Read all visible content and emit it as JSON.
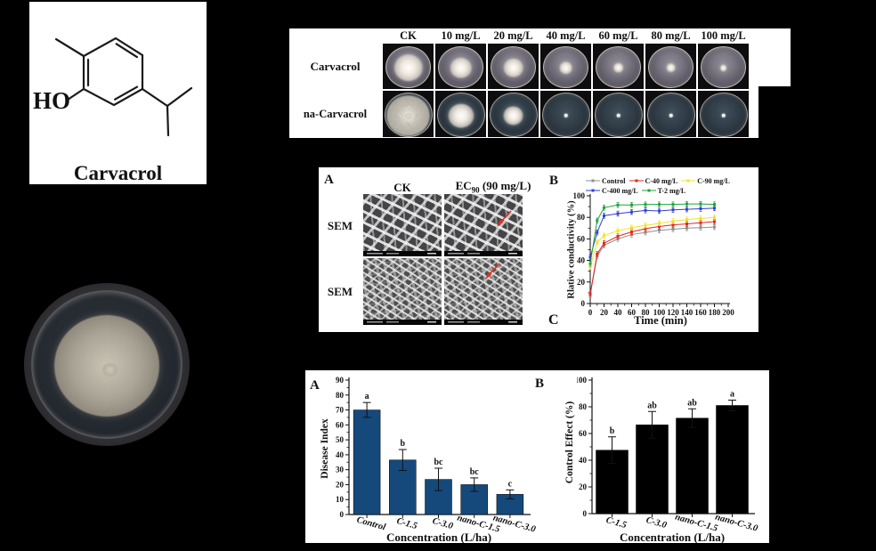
{
  "background_color": "#000000",
  "structure_panel": {
    "compound_label": "Carvacrol",
    "hydroxyl_label": "HO"
  },
  "plate_panel": {
    "col_headers": [
      "CK",
      "10 mg/L",
      "20 mg/L",
      "40 mg/L",
      "60 mg/L",
      "80 mg/L",
      "100 mg/L"
    ],
    "rows": [
      {
        "label": "Carvacrol",
        "colony_scales": [
          0.66,
          0.5,
          0.46,
          0.3,
          0.24,
          0.22,
          0.16
        ]
      },
      {
        "label": "na-Carvacrol",
        "colony_scales": [
          0.94,
          0.56,
          0.44,
          0.1,
          0.09,
          0.09,
          0.09
        ]
      }
    ]
  },
  "sem_panel": {
    "panel_label": "A",
    "col_header_ck": "CK",
    "ec_prefix": "EC",
    "ec_sub": "90",
    "ec_suffix": " (90 mg/L)",
    "row_labels": [
      "SEM",
      "SEM"
    ],
    "arrow_color": "#e03020"
  },
  "panel_c_label": "C",
  "chart_data": [
    {
      "id": "relative_conductivity",
      "panel_label": "B",
      "type": "line",
      "xlabel": "Time (min)",
      "ylabel": "Rlative conductivity (%)",
      "xlim": [
        0,
        200
      ],
      "ylim": [
        0,
        100
      ],
      "xticks": [
        0,
        20,
        40,
        60,
        80,
        100,
        120,
        140,
        160,
        180,
        200
      ],
      "yticks": [
        0,
        20,
        40,
        60,
        80,
        100
      ],
      "x": [
        0,
        10,
        20,
        40,
        60,
        80,
        100,
        120,
        140,
        160,
        180
      ],
      "series": [
        {
          "name": "Control",
          "color": "#8f8f8f",
          "values": [
            8,
            44,
            54,
            60,
            64,
            66,
            68,
            69,
            70,
            70.5,
            71
          ]
        },
        {
          "name": "C-40 mg/L",
          "color": "#e8251d",
          "values": [
            9,
            46,
            56,
            62.5,
            66.5,
            69.5,
            71.5,
            73,
            74,
            75,
            76
          ]
        },
        {
          "name": "C-90 mg/L",
          "color": "#f0e32b",
          "values": [
            34,
            57,
            63,
            67.5,
            70.5,
            72.5,
            74.5,
            76.5,
            78,
            79,
            80
          ]
        },
        {
          "name": "C-400 mg/L",
          "color": "#2f3fd3",
          "values": [
            43,
            66,
            81.5,
            83.5,
            85,
            86.5,
            86,
            87,
            87.5,
            88,
            88.5
          ]
        },
        {
          "name": "T-2 mg/L",
          "color": "#1fa23a",
          "values": [
            37,
            77,
            89,
            91.5,
            91.5,
            92,
            92,
            92,
            92.5,
            92.5,
            92
          ]
        }
      ],
      "point_error": 1.5,
      "legend_position": "top",
      "grid": false
    },
    {
      "id": "disease_index",
      "panel_label": "A",
      "type": "bar",
      "categories": [
        "Control",
        "C-1.5",
        "C-3.0",
        "nano-C-1.5",
        "nano-C-3.0"
      ],
      "values": [
        70,
        36.5,
        23.5,
        20,
        13.5
      ],
      "errors": [
        5,
        7,
        7.5,
        4.5,
        3
      ],
      "sig_letters": [
        "a",
        "b",
        "bc",
        "bc",
        "c"
      ],
      "bar_color": "#15497b",
      "xlabel": "Concentration (L/ha)",
      "ylabel": "Disease Index",
      "ylim": [
        0,
        90
      ],
      "yticks": [
        0,
        10,
        20,
        30,
        40,
        50,
        60,
        70,
        80,
        90
      ],
      "grid": false
    },
    {
      "id": "control_effect",
      "panel_label": "B",
      "type": "bar",
      "categories": [
        "C-1.5",
        "C-3.0",
        "nano-C-1.5",
        "nano-C-3.0"
      ],
      "values": [
        47.5,
        66.5,
        71.5,
        81
      ],
      "errors": [
        10,
        10,
        7,
        4
      ],
      "sig_letters": [
        "b",
        "ab",
        "ab",
        "a"
      ],
      "bar_color": "#000000",
      "xlabel": "Concentration (L/ha)",
      "ylabel": "Control Effect (%)",
      "ylim": [
        0,
        100
      ],
      "yticks": [
        0,
        20,
        40,
        60,
        80,
        100
      ],
      "grid": false
    }
  ]
}
